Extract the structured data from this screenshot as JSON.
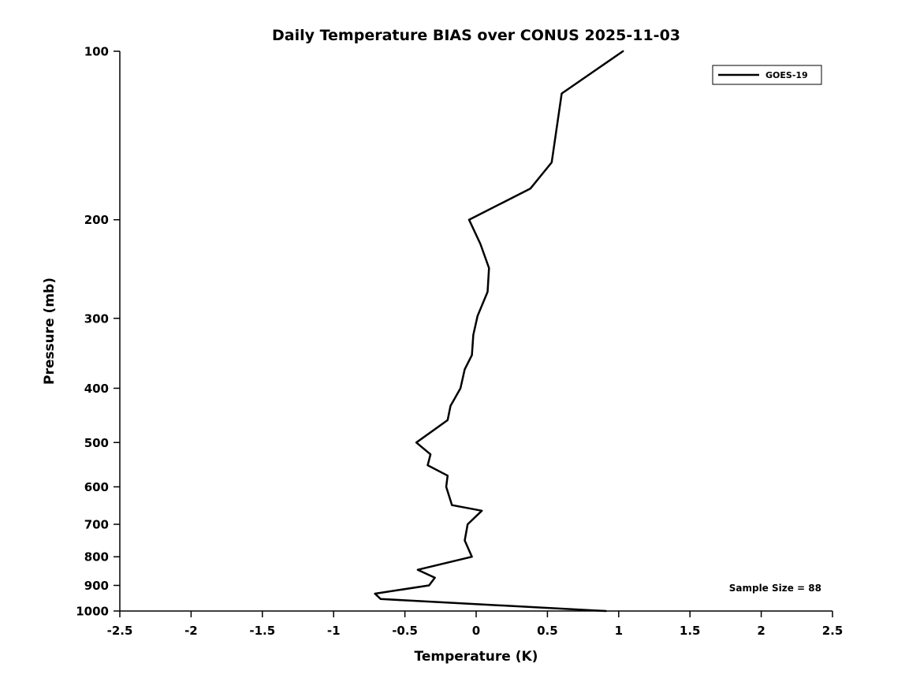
{
  "figure": {
    "background": "#ffffff",
    "foreground": "#000000"
  },
  "chart_data": {
    "type": "line",
    "title": "Daily Temperature BIAS over CONUS 2025-11-03",
    "xlabel": "Temperature (K)",
    "ylabel": "Pressure (mb)",
    "xlim": [
      -2.5,
      2.5
    ],
    "ylim": [
      100,
      1000
    ],
    "y_scale": "log",
    "y_inverted": true,
    "grid": false,
    "x_ticks": [
      -2.5,
      -2,
      -1.5,
      -1,
      -0.5,
      0,
      0.5,
      1,
      1.5,
      2,
      2.5
    ],
    "x_tick_labels": [
      "-2.5",
      "-2",
      "-1.5",
      "-1",
      "-0.5",
      "0",
      "0.5",
      "1",
      "1.5",
      "2",
      "2.5"
    ],
    "y_ticks": [
      100,
      200,
      300,
      400,
      500,
      600,
      700,
      800,
      900,
      1000
    ],
    "y_tick_labels": [
      "100",
      "200",
      "300",
      "400",
      "500",
      "600",
      "700",
      "800",
      "900",
      "1000"
    ],
    "legend": {
      "position": "top-right",
      "entries": [
        {
          "label": "GOES-19",
          "color": "#000000",
          "line_width": 2.5
        }
      ]
    },
    "annotation": "Sample Size = 88",
    "series": [
      {
        "name": "GOES-19",
        "pressure_mb": [
          100,
          119,
          158,
          176,
          200,
          221,
          244,
          269,
          297,
          321,
          349,
          370,
          400,
          430,
          456,
          500,
          525,
          549,
          573,
          600,
          647,
          662,
          700,
          748,
          800,
          844,
          872,
          900,
          931,
          952,
          1000
        ],
        "bias_k": [
          1.03,
          0.6,
          0.53,
          0.38,
          -0.05,
          0.03,
          0.09,
          0.08,
          0.01,
          -0.02,
          -0.03,
          -0.08,
          -0.11,
          -0.18,
          -0.2,
          -0.42,
          -0.32,
          -0.34,
          -0.2,
          -0.21,
          -0.17,
          0.04,
          -0.06,
          -0.08,
          -0.03,
          -0.41,
          -0.29,
          -0.33,
          -0.71,
          -0.67,
          0.91
        ]
      }
    ]
  }
}
